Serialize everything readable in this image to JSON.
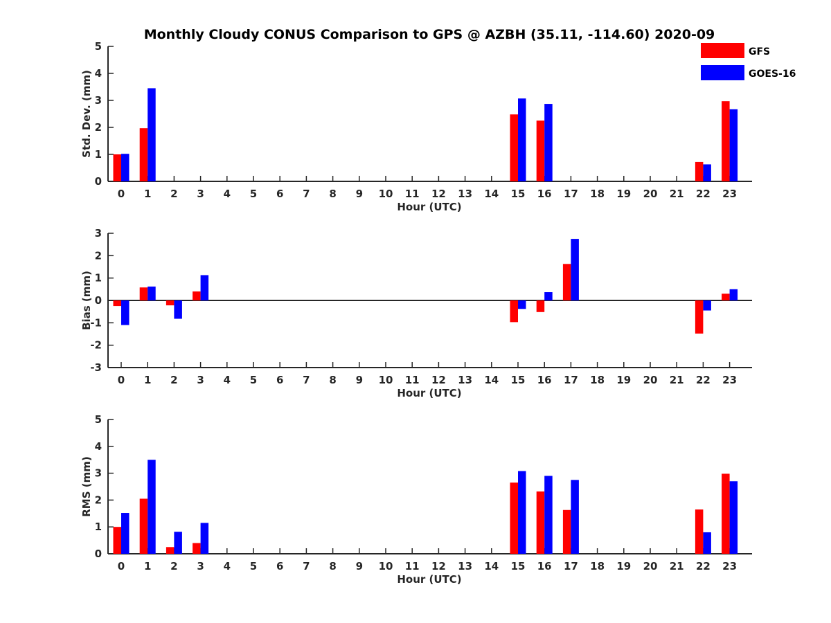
{
  "title": "Monthly Cloudy CONUS Comparison to GPS @ AZBH (35.11, -114.60) 2020-09",
  "legend": {
    "placement": "top-right",
    "items": [
      {
        "label": "GFS",
        "color": "#ff0000"
      },
      {
        "label": "GOES-16",
        "color": "#0000ff"
      }
    ]
  },
  "chart_data": [
    {
      "type": "bar",
      "ylabel": "Std. Dev. (mm)",
      "xlabel": "Hour (UTC)",
      "ylim": [
        0,
        5
      ],
      "yticks": [
        "0",
        "1",
        "2",
        "3",
        "4",
        "5"
      ],
      "categories": [
        "0",
        "1",
        "2",
        "3",
        "4",
        "5",
        "6",
        "7",
        "8",
        "9",
        "10",
        "11",
        "12",
        "13",
        "14",
        "15",
        "16",
        "17",
        "18",
        "19",
        "20",
        "21",
        "22",
        "23"
      ],
      "series": [
        {
          "name": "GFS",
          "color": "#ff0000",
          "values": [
            1.0,
            1.97,
            null,
            null,
            null,
            null,
            null,
            null,
            null,
            null,
            null,
            null,
            null,
            null,
            null,
            2.48,
            2.25,
            null,
            null,
            null,
            null,
            null,
            0.72,
            2.97
          ]
        },
        {
          "name": "GOES-16",
          "color": "#0000ff",
          "values": [
            1.02,
            3.45,
            null,
            null,
            null,
            null,
            null,
            null,
            null,
            null,
            null,
            null,
            null,
            null,
            null,
            3.07,
            2.87,
            null,
            null,
            null,
            null,
            null,
            0.63,
            2.67
          ]
        }
      ]
    },
    {
      "type": "bar",
      "ylabel": "Bias (mm)",
      "xlabel": "Hour (UTC)",
      "ylim": [
        -3,
        3
      ],
      "yticks": [
        "-3",
        "-2",
        "-1",
        "0",
        "1",
        "2",
        "3"
      ],
      "categories": [
        "0",
        "1",
        "2",
        "3",
        "4",
        "5",
        "6",
        "7",
        "8",
        "9",
        "10",
        "11",
        "12",
        "13",
        "14",
        "15",
        "16",
        "17",
        "18",
        "19",
        "20",
        "21",
        "22",
        "23"
      ],
      "series": [
        {
          "name": "GFS",
          "color": "#ff0000",
          "values": [
            -0.25,
            0.58,
            -0.22,
            0.4,
            null,
            null,
            null,
            null,
            null,
            null,
            null,
            null,
            null,
            null,
            null,
            -0.97,
            -0.52,
            1.63,
            null,
            null,
            null,
            null,
            -1.48,
            0.3
          ]
        },
        {
          "name": "GOES-16",
          "color": "#0000ff",
          "values": [
            -1.1,
            0.62,
            -0.82,
            1.13,
            null,
            null,
            null,
            null,
            null,
            null,
            null,
            null,
            null,
            null,
            null,
            -0.38,
            0.37,
            2.75,
            null,
            null,
            null,
            null,
            -0.45,
            0.5
          ]
        }
      ]
    },
    {
      "type": "bar",
      "ylabel": "RMS (mm)",
      "xlabel": "Hour (UTC)",
      "ylim": [
        0,
        5
      ],
      "yticks": [
        "0",
        "1",
        "2",
        "3",
        "4",
        "5"
      ],
      "categories": [
        "0",
        "1",
        "2",
        "3",
        "4",
        "5",
        "6",
        "7",
        "8",
        "9",
        "10",
        "11",
        "12",
        "13",
        "14",
        "15",
        "16",
        "17",
        "18",
        "19",
        "20",
        "21",
        "22",
        "23"
      ],
      "series": [
        {
          "name": "GFS",
          "color": "#ff0000",
          "values": [
            1.0,
            2.05,
            0.25,
            0.4,
            null,
            null,
            null,
            null,
            null,
            null,
            null,
            null,
            null,
            null,
            null,
            2.65,
            2.32,
            1.63,
            null,
            null,
            null,
            null,
            1.65,
            2.98
          ]
        },
        {
          "name": "GOES-16",
          "color": "#0000ff",
          "values": [
            1.52,
            3.5,
            0.82,
            1.15,
            null,
            null,
            null,
            null,
            null,
            null,
            null,
            null,
            null,
            null,
            null,
            3.08,
            2.9,
            2.75,
            null,
            null,
            null,
            null,
            0.8,
            2.7
          ]
        }
      ]
    }
  ]
}
